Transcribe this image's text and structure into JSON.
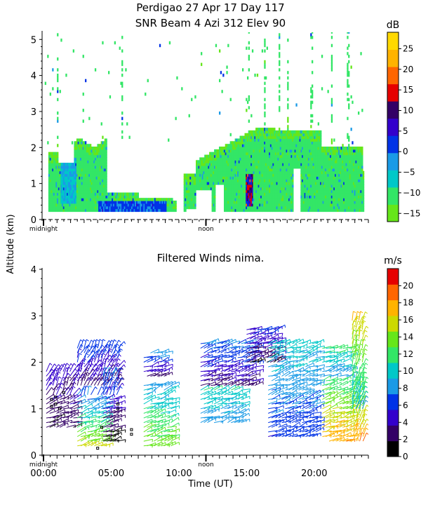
{
  "header": {
    "line1": "Perdigao  27 Apr 17 Day 117",
    "line2": "SNR Beam 4 Azi 312 Elev 90"
  },
  "shared_ylabel": "Altitude (km)",
  "chart_data": [
    {
      "type": "heatmap",
      "title": "SNR Beam 4 Azi 312 Elev 90",
      "xlabel": "",
      "ylabel": "Altitude (km)",
      "xlim": [
        0,
        24
      ],
      "ylim": [
        0,
        5.2
      ],
      "yticks": [
        "0",
        "1",
        "2",
        "3",
        "4",
        "5"
      ],
      "x_markers": [
        {
          "x": 0,
          "label": "midnight"
        },
        {
          "x": 12,
          "label": "noon"
        }
      ],
      "colorbar": {
        "unit": "dB",
        "tick_labels": [
          "25",
          "20",
          "15",
          "10",
          "5",
          "0",
          "−5",
          "−10",
          "−15"
        ],
        "tick_values": [
          25,
          20,
          15,
          10,
          5,
          0,
          -5,
          -10,
          -15
        ],
        "range": [
          -17,
          29
        ],
        "colors": [
          "#66e61a",
          "#33e666",
          "#00c8c8",
          "#1a9ae6",
          "#0033e6",
          "#3300cc",
          "#330066",
          "#e60000",
          "#ff6600",
          "#ffb300",
          "#ffd900"
        ]
      }
    },
    {
      "type": "scatter",
      "title": "Filtered Winds nima.",
      "xlabel": "Time (UT)",
      "ylabel": "Altitude (km)",
      "xlim": [
        0,
        24
      ],
      "ylim": [
        0,
        4
      ],
      "yticks": [
        "0",
        "1",
        "2",
        "3",
        "4"
      ],
      "xticks": [
        "00:00",
        "05:00",
        "10:00",
        "15:00",
        "20:00"
      ],
      "xtick_values": [
        0,
        5,
        10,
        15,
        20
      ],
      "x_markers": [
        {
          "x": 0,
          "label": "midnight"
        },
        {
          "x": 12,
          "label": "noon"
        }
      ],
      "colorbar": {
        "unit": "m/s",
        "tick_labels": [
          "20",
          "18",
          "16",
          "14",
          "12",
          "10",
          "8",
          "6",
          "4",
          "2",
          "0"
        ],
        "tick_values": [
          20,
          18,
          16,
          14,
          12,
          10,
          8,
          6,
          4,
          2,
          0
        ],
        "range": [
          0,
          22
        ],
        "colors": [
          "#000000",
          "#330066",
          "#3300cc",
          "#0033e6",
          "#1a9ae6",
          "#00c8c8",
          "#33e666",
          "#66e61a",
          "#ccd900",
          "#ffb300",
          "#ff6600",
          "#e60000"
        ]
      },
      "wind_segments": [
        {
          "t0": 0.2,
          "t1": 2.4,
          "h0": 0.6,
          "h1": 1.9,
          "speed": [
            2,
            5
          ]
        },
        {
          "t0": 2.5,
          "t1": 5.6,
          "h0": 1.5,
          "h1": 2.4,
          "speed": [
            3,
            7
          ]
        },
        {
          "t0": 2.5,
          "t1": 4.6,
          "h0": 0.2,
          "h1": 1.3,
          "speed": [
            7,
            15
          ]
        },
        {
          "t0": 4.4,
          "t1": 5.6,
          "h0": 0.3,
          "h1": 1.8,
          "speed": [
            1,
            8
          ]
        },
        {
          "t0": 7.4,
          "t1": 9.1,
          "h0": 1.7,
          "h1": 2.3,
          "speed": [
            3,
            9
          ]
        },
        {
          "t0": 7.4,
          "t1": 9.6,
          "h0": 0.2,
          "h1": 1.6,
          "speed": [
            8,
            14
          ]
        },
        {
          "t0": 11.6,
          "t1": 15.6,
          "h0": 1.5,
          "h1": 2.5,
          "speed": [
            3,
            8
          ]
        },
        {
          "t0": 11.6,
          "t1": 14.6,
          "h0": 0.7,
          "h1": 1.5,
          "speed": [
            8,
            11
          ]
        },
        {
          "t0": 15.0,
          "t1": 17.4,
          "h0": 2.0,
          "h1": 2.75,
          "speed": [
            2,
            6
          ]
        },
        {
          "t0": 16.6,
          "t1": 20.2,
          "h0": 0.4,
          "h1": 2.5,
          "speed": [
            6,
            10
          ]
        },
        {
          "t0": 20.6,
          "t1": 22.6,
          "h0": 1.7,
          "h1": 2.4,
          "speed": [
            8,
            12
          ]
        },
        {
          "t0": 20.6,
          "t1": 23.6,
          "h0": 0.3,
          "h1": 1.7,
          "speed": [
            11,
            18
          ]
        },
        {
          "t0": 22.8,
          "t1": 23.6,
          "h0": 1.0,
          "h1": 3.0,
          "speed": [
            9,
            17
          ]
        }
      ]
    }
  ]
}
